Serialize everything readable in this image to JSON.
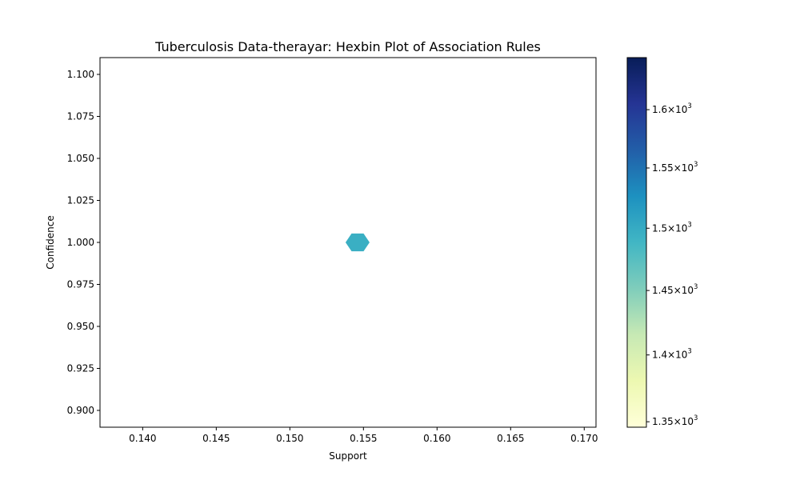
{
  "chart_data": {
    "type": "hexbin",
    "title": "Tuberculosis Data-therayar: Hexbin Plot of Association Rules",
    "xlabel": "Support",
    "ylabel": "Confidence",
    "xlim": [
      0.1371,
      0.1708
    ],
    "ylim": [
      0.89,
      1.11
    ],
    "x_ticks": [
      0.14,
      0.145,
      0.15,
      0.155,
      0.16,
      0.165,
      0.17
    ],
    "x_tick_labels": [
      "0.140",
      "0.145",
      "0.150",
      "0.155",
      "0.160",
      "0.165",
      "0.170"
    ],
    "y_ticks": [
      0.9,
      0.925,
      0.95,
      0.975,
      1.0,
      1.025,
      1.05,
      1.075,
      1.1
    ],
    "y_tick_labels": [
      "0.900",
      "0.925",
      "0.950",
      "0.975",
      "1.000",
      "1.025",
      "1.050",
      "1.075",
      "1.100"
    ],
    "points": [
      {
        "x": 0.1546,
        "y": 1.0,
        "count": 1496
      }
    ],
    "grid": false,
    "colormap": "YlGnBu",
    "colormap_stops": [
      "#ffffd9",
      "#edf8b1",
      "#c7e9b4",
      "#7fcdbb",
      "#41b6c4",
      "#1d91c0",
      "#225ea8",
      "#253494",
      "#081d58"
    ],
    "colorbar": {
      "scale": "log",
      "range": [
        1346,
        1646
      ],
      "ticks": [
        {
          "value": 1350,
          "mantissa": "1.35",
          "base": "10",
          "exp": "3"
        },
        {
          "value": 1400,
          "mantissa": "1.4",
          "base": "10",
          "exp": "3"
        },
        {
          "value": 1450,
          "mantissa": "1.45",
          "base": "10",
          "exp": "3"
        },
        {
          "value": 1500,
          "mantissa": "1.5",
          "base": "10",
          "exp": "3"
        },
        {
          "value": 1550,
          "mantissa": "1.55",
          "base": "10",
          "exp": "3"
        },
        {
          "value": 1600,
          "mantissa": "1.6",
          "base": "10",
          "exp": "3"
        }
      ]
    }
  }
}
